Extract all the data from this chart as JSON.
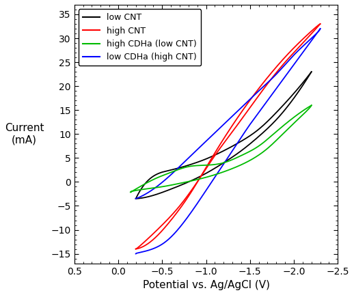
{
  "title": "",
  "xlabel": "Potential vs. Ag/AgCl (V)",
  "ylabel": "Current\n(mA)",
  "xlim": [
    0.5,
    -2.5
  ],
  "ylim": [
    -17,
    37
  ],
  "xticks": [
    0.5,
    0.0,
    -0.5,
    -1.0,
    -1.5,
    -2.0,
    -2.5
  ],
  "yticks": [
    -15,
    -10,
    -5,
    0,
    5,
    10,
    15,
    20,
    25,
    30,
    35
  ],
  "legend": [
    "low CNT",
    "high CNT",
    "high CDHa (low CNT)",
    "low CDHa (high CNT)"
  ],
  "colors": [
    "#000000",
    "#ff0000",
    "#00bb00",
    "#0000ff"
  ],
  "background": "#ffffff",
  "black_fwd": {
    "v": [
      -0.2,
      -0.4,
      -0.6,
      -0.8,
      -1.0,
      -1.2,
      -1.4,
      -1.6,
      -1.8,
      -2.0,
      -2.2
    ],
    "i": [
      -3.5,
      -2.8,
      -1.5,
      0.0,
      1.8,
      4.0,
      6.5,
      9.5,
      13.0,
      17.5,
      23.0
    ]
  },
  "black_rev": {
    "v": [
      -2.2,
      -2.0,
      -1.8,
      -1.6,
      -1.4,
      -1.2,
      -1.0,
      -0.8,
      -0.6,
      -0.4,
      -0.2
    ],
    "i": [
      23.0,
      18.5,
      14.5,
      11.0,
      8.5,
      6.5,
      4.8,
      3.5,
      2.5,
      1.2,
      -3.5
    ]
  },
  "red_fwd": {
    "v": [
      -0.2,
      -0.4,
      -0.6,
      -0.8,
      -1.0,
      -1.2,
      -1.4,
      -1.6,
      -1.8,
      -2.0,
      -2.2,
      -2.3
    ],
    "i": [
      -14.0,
      -12.0,
      -8.0,
      -3.0,
      3.0,
      9.0,
      14.5,
      19.5,
      24.0,
      28.0,
      31.5,
      33.0
    ]
  },
  "red_rev": {
    "v": [
      -2.3,
      -2.1,
      -1.9,
      -1.7,
      -1.5,
      -1.3,
      -1.1,
      -0.9,
      -0.7,
      -0.5,
      -0.3,
      -0.2
    ],
    "i": [
      33.0,
      29.0,
      25.0,
      20.5,
      15.5,
      10.5,
      5.5,
      0.0,
      -5.0,
      -9.0,
      -12.5,
      -14.0
    ]
  },
  "blue_fwd": {
    "v": [
      -0.2,
      -0.4,
      -0.6,
      -0.8,
      -1.0,
      -1.2,
      -1.4,
      -1.6,
      -1.8,
      -2.0,
      -2.2,
      -2.3
    ],
    "i": [
      -3.5,
      -1.5,
      1.5,
      5.0,
      8.5,
      12.0,
      15.5,
      19.0,
      22.5,
      26.5,
      30.0,
      32.0
    ]
  },
  "blue_rev": {
    "v": [
      -2.3,
      -2.1,
      -1.9,
      -1.7,
      -1.5,
      -1.3,
      -1.1,
      -0.9,
      -0.7,
      -0.5,
      -0.3,
      -0.2
    ],
    "i": [
      32.0,
      27.0,
      22.0,
      17.0,
      12.0,
      6.5,
      1.0,
      -4.5,
      -9.5,
      -13.0,
      -14.5,
      -15.0
    ]
  },
  "green_fwd": {
    "v": [
      -0.15,
      -0.3,
      -0.5,
      -0.7,
      -0.9,
      -1.1,
      -1.3,
      -1.5,
      -1.7,
      -1.9,
      -2.1,
      -2.2
    ],
    "i": [
      -2.0,
      -1.5,
      -1.0,
      -0.3,
      0.5,
      1.5,
      2.8,
      4.5,
      7.0,
      10.5,
      14.0,
      16.0
    ]
  },
  "green_rev": {
    "v": [
      -2.2,
      -2.0,
      -1.8,
      -1.6,
      -1.4,
      -1.2,
      -1.0,
      -0.8,
      -0.6,
      -0.4,
      -0.2,
      -0.15
    ],
    "i": [
      16.0,
      13.5,
      10.5,
      7.5,
      5.5,
      4.0,
      3.5,
      3.2,
      2.0,
      0.5,
      -1.5,
      -2.0
    ]
  }
}
